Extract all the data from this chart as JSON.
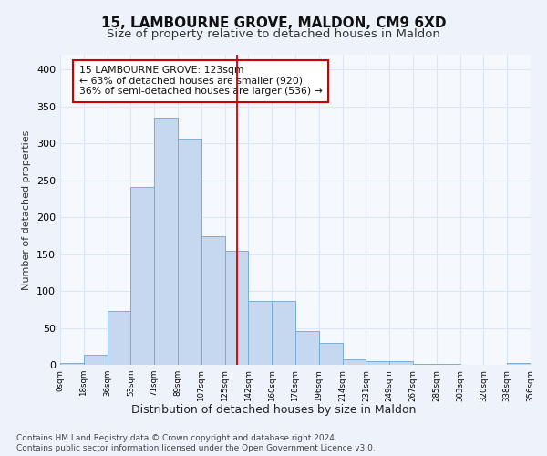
{
  "title_line1": "15, LAMBOURNE GROVE, MALDON, CM9 6XD",
  "title_line2": "Size of property relative to detached houses in Maldon",
  "xlabel": "Distribution of detached houses by size in Maldon",
  "ylabel": "Number of detached properties",
  "bin_labels": [
    "0sqm",
    "18sqm",
    "36sqm",
    "53sqm",
    "71sqm",
    "89sqm",
    "107sqm",
    "125sqm",
    "142sqm",
    "160sqm",
    "178sqm",
    "196sqm",
    "214sqm",
    "231sqm",
    "249sqm",
    "267sqm",
    "285sqm",
    "303sqm",
    "320sqm",
    "338sqm",
    "356sqm"
  ],
  "bar_heights": [
    2,
    14,
    73,
    241,
    335,
    306,
    174,
    155,
    86,
    86,
    46,
    30,
    8,
    5,
    5,
    1,
    1,
    0,
    0,
    3
  ],
  "bar_color": "#c5d8f0",
  "bar_edge_color": "#7aadd4",
  "vline_color": "#cc0000",
  "grid_color": "#dce6f4",
  "background_color": "#eef3fb",
  "plot_background_color": "#f5f8fd",
  "annotation_text": "15 LAMBOURNE GROVE: 123sqm\n← 63% of detached houses are smaller (920)\n36% of semi-detached houses are larger (536) →",
  "annotation_box_color": "#ffffff",
  "annotation_box_edge_color": "#cc0000",
  "footer_line1": "Contains HM Land Registry data © Crown copyright and database right 2024.",
  "footer_line2": "Contains public sector information licensed under the Open Government Licence v3.0.",
  "ylim": [
    0,
    420
  ],
  "yticks": [
    0,
    50,
    100,
    150,
    200,
    250,
    300,
    350,
    400
  ],
  "vline_x": 7.0
}
